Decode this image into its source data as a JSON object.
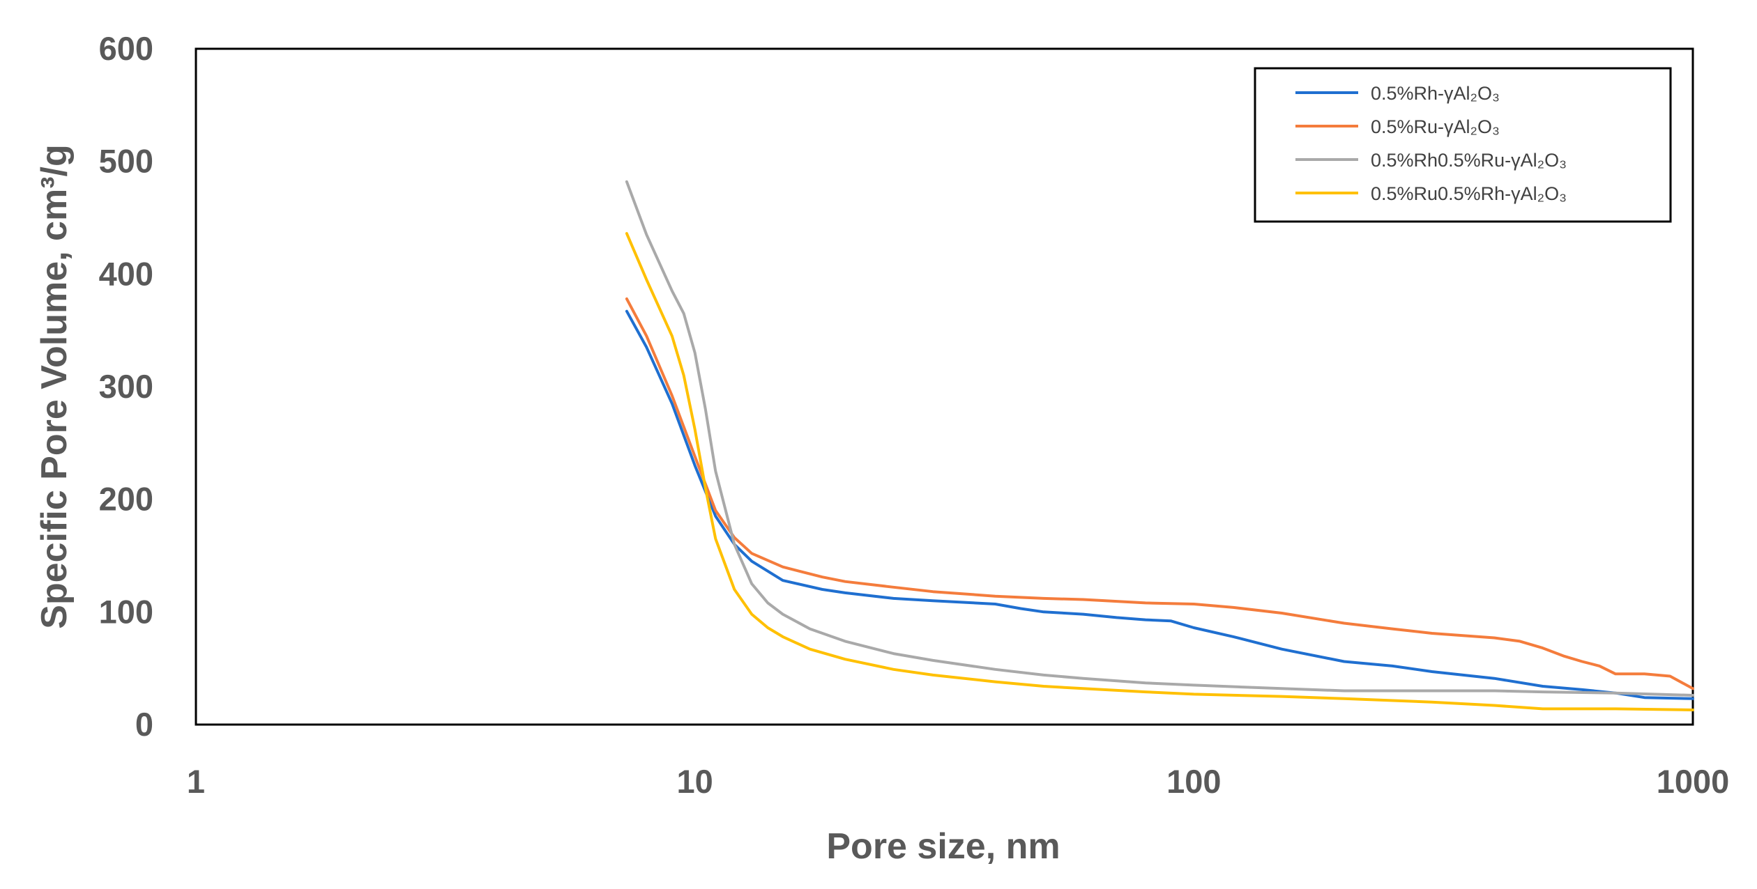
{
  "chart_data": {
    "type": "line",
    "title": "",
    "xlabel": "Pore size, nm",
    "ylabel": "Specific Pore Volume, cm³/g",
    "x_scale": "log",
    "xlim": [
      1,
      1000
    ],
    "ylim": [
      0,
      600
    ],
    "x_ticks": [
      "1",
      "10",
      "100",
      "1000"
    ],
    "y_ticks": [
      "0",
      "100",
      "200",
      "300",
      "400",
      "500",
      "600"
    ],
    "grid": false,
    "legend_position": "top-right",
    "series": [
      {
        "name": "0.5%Rh-γAl₂O₃",
        "color": "#1F6FD0",
        "x": [
          7.3,
          8,
          9,
          10,
          11,
          12,
          13,
          15,
          18,
          20,
          25,
          30,
          40,
          45,
          50,
          55,
          60,
          70,
          80,
          90,
          100,
          120,
          150,
          200,
          250,
          300,
          400,
          500,
          600,
          700,
          800,
          1000
        ],
        "y": [
          367,
          335,
          285,
          230,
          185,
          160,
          145,
          128,
          120,
          117,
          112,
          110,
          107,
          103,
          100,
          99,
          98,
          95,
          93,
          92,
          86,
          78,
          67,
          56,
          52,
          47,
          41,
          34,
          31,
          28,
          24,
          23
        ]
      },
      {
        "name": "0.5%Ru-γAl₂O₃",
        "color": "#F47C3C",
        "x": [
          7.3,
          8,
          9,
          10,
          11,
          12,
          13,
          15,
          18,
          20,
          25,
          30,
          40,
          50,
          60,
          80,
          100,
          120,
          150,
          200,
          250,
          300,
          400,
          450,
          500,
          550,
          600,
          650,
          700,
          750,
          800,
          900,
          1000
        ],
        "y": [
          378,
          345,
          292,
          238,
          190,
          166,
          152,
          140,
          131,
          127,
          122,
          118,
          114,
          112,
          111,
          108,
          107,
          104,
          99,
          90,
          85,
          81,
          77,
          74,
          68,
          61,
          56,
          52,
          45,
          45,
          45,
          43,
          32
        ]
      },
      {
        "name": "0.5%Rh0.5%Ru-γAl₂O₃",
        "color": "#A9A9A9",
        "x": [
          7.3,
          8,
          9,
          9.5,
          10,
          10.5,
          11,
          12,
          13,
          14,
          15,
          17,
          20,
          25,
          30,
          40,
          50,
          60,
          80,
          100,
          150,
          200,
          300,
          400,
          500,
          700,
          1000
        ],
        "y": [
          482,
          435,
          385,
          365,
          330,
          280,
          225,
          160,
          125,
          108,
          98,
          85,
          74,
          63,
          57,
          49,
          44,
          41,
          37,
          35,
          32,
          30,
          30,
          30,
          29,
          28,
          26
        ]
      },
      {
        "name": "0.5%Ru0.5%Rh-γAl₂O₃",
        "color": "#FFC000",
        "x": [
          7.3,
          8,
          9,
          9.5,
          10,
          10.5,
          11,
          12,
          13,
          14,
          15,
          17,
          20,
          25,
          30,
          40,
          50,
          60,
          80,
          100,
          150,
          200,
          300,
          400,
          500,
          700,
          1000
        ],
        "y": [
          436,
          395,
          345,
          310,
          262,
          210,
          165,
          120,
          98,
          86,
          78,
          67,
          58,
          49,
          44,
          38,
          34,
          32,
          29,
          27,
          25,
          23,
          20,
          17,
          14,
          14,
          13
        ]
      }
    ]
  }
}
